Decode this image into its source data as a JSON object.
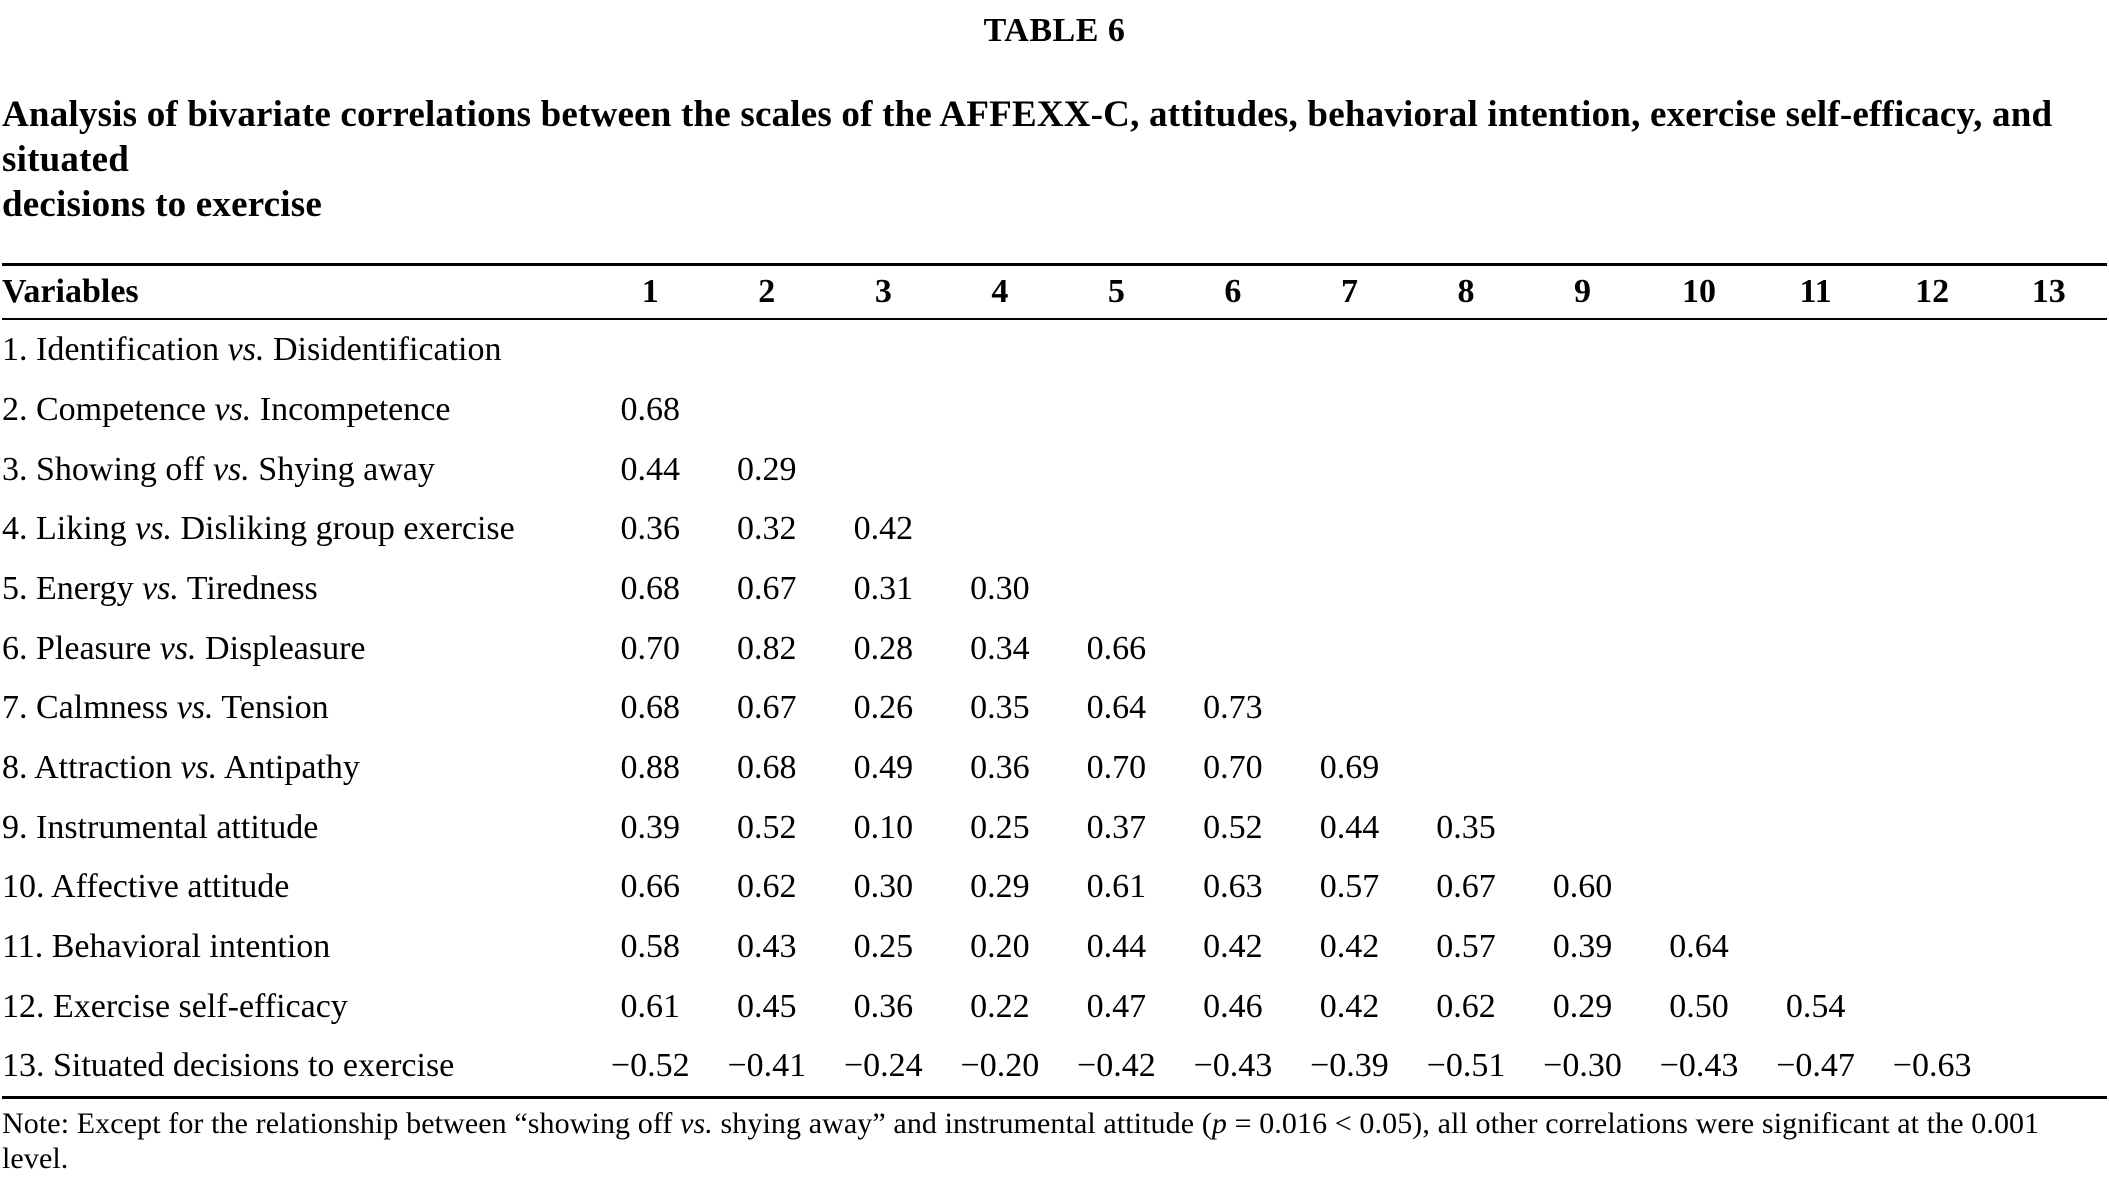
{
  "table_label": "TABLE 6",
  "caption_lines": [
    "Analysis of bivariate correlations between the scales of the AFFEXX-C, attitudes, behavioral intention, exercise self-efficacy, and situated",
    "decisions to exercise"
  ],
  "header": {
    "variables": "Variables",
    "columns": [
      "1",
      "2",
      "3",
      "4",
      "5",
      "6",
      "7",
      "8",
      "9",
      "10",
      "11",
      "12",
      "13"
    ]
  },
  "rows": [
    {
      "pre": "1. Identification ",
      "vs": "vs.",
      "post": " Disidentification",
      "values": [
        "",
        "",
        "",
        "",
        "",
        "",
        "",
        "",
        "",
        "",
        "",
        "",
        ""
      ]
    },
    {
      "pre": "2. Competence ",
      "vs": "vs.",
      "post": " Incompetence",
      "values": [
        "0.68",
        "",
        "",
        "",
        "",
        "",
        "",
        "",
        "",
        "",
        "",
        "",
        ""
      ]
    },
    {
      "pre": "3. Showing off ",
      "vs": "vs.",
      "post": " Shying away",
      "values": [
        "0.44",
        "0.29",
        "",
        "",
        "",
        "",
        "",
        "",
        "",
        "",
        "",
        "",
        ""
      ]
    },
    {
      "pre": "4. Liking ",
      "vs": "vs.",
      "post": " Disliking group exercise",
      "values": [
        "0.36",
        "0.32",
        "0.42",
        "",
        "",
        "",
        "",
        "",
        "",
        "",
        "",
        "",
        ""
      ]
    },
    {
      "pre": "5. Energy ",
      "vs": "vs.",
      "post": " Tiredness",
      "values": [
        "0.68",
        "0.67",
        "0.31",
        "0.30",
        "",
        "",
        "",
        "",
        "",
        "",
        "",
        "",
        ""
      ]
    },
    {
      "pre": "6. Pleasure ",
      "vs": "vs.",
      "post": " Displeasure",
      "values": [
        "0.70",
        "0.82",
        "0.28",
        "0.34",
        "0.66",
        "",
        "",
        "",
        "",
        "",
        "",
        "",
        ""
      ]
    },
    {
      "pre": "7. Calmness ",
      "vs": "vs.",
      "post": " Tension",
      "values": [
        "0.68",
        "0.67",
        "0.26",
        "0.35",
        "0.64",
        "0.73",
        "",
        "",
        "",
        "",
        "",
        "",
        ""
      ]
    },
    {
      "pre": "8. Attraction ",
      "vs": "vs.",
      "post": " Antipathy",
      "values": [
        "0.88",
        "0.68",
        "0.49",
        "0.36",
        "0.70",
        "0.70",
        "0.69",
        "",
        "",
        "",
        "",
        "",
        ""
      ]
    },
    {
      "pre": "9. Instrumental attitude",
      "vs": "",
      "post": "",
      "values": [
        "0.39",
        "0.52",
        "0.10",
        "0.25",
        "0.37",
        "0.52",
        "0.44",
        "0.35",
        "",
        "",
        "",
        "",
        ""
      ]
    },
    {
      "pre": "10. Affective attitude",
      "vs": "",
      "post": "",
      "values": [
        "0.66",
        "0.62",
        "0.30",
        "0.29",
        "0.61",
        "0.63",
        "0.57",
        "0.67",
        "0.60",
        "",
        "",
        "",
        ""
      ]
    },
    {
      "pre": "11. Behavioral intention",
      "vs": "",
      "post": "",
      "values": [
        "0.58",
        "0.43",
        "0.25",
        "0.20",
        "0.44",
        "0.42",
        "0.42",
        "0.57",
        "0.39",
        "0.64",
        "",
        "",
        ""
      ]
    },
    {
      "pre": "12. Exercise self-efficacy",
      "vs": "",
      "post": "",
      "values": [
        "0.61",
        "0.45",
        "0.36",
        "0.22",
        "0.47",
        "0.46",
        "0.42",
        "0.62",
        "0.29",
        "0.50",
        "0.54",
        "",
        ""
      ]
    },
    {
      "pre": "13. Situated decisions to exercise",
      "vs": "",
      "post": "",
      "values": [
        "−0.52",
        "−0.41",
        "−0.24",
        "−0.20",
        "−0.42",
        "−0.43",
        "−0.39",
        "−0.51",
        "−0.30",
        "−0.43",
        "−0.47",
        "−0.63",
        ""
      ]
    }
  ],
  "note": {
    "p1": "Note: Except for the relationship between “showing off ",
    "i1": "vs.",
    "p2": " shying away” and instrumental attitude (",
    "i2": "p",
    "p3": " = 0.016 < 0.05), all other correlations were significant at the 0.001 level."
  }
}
